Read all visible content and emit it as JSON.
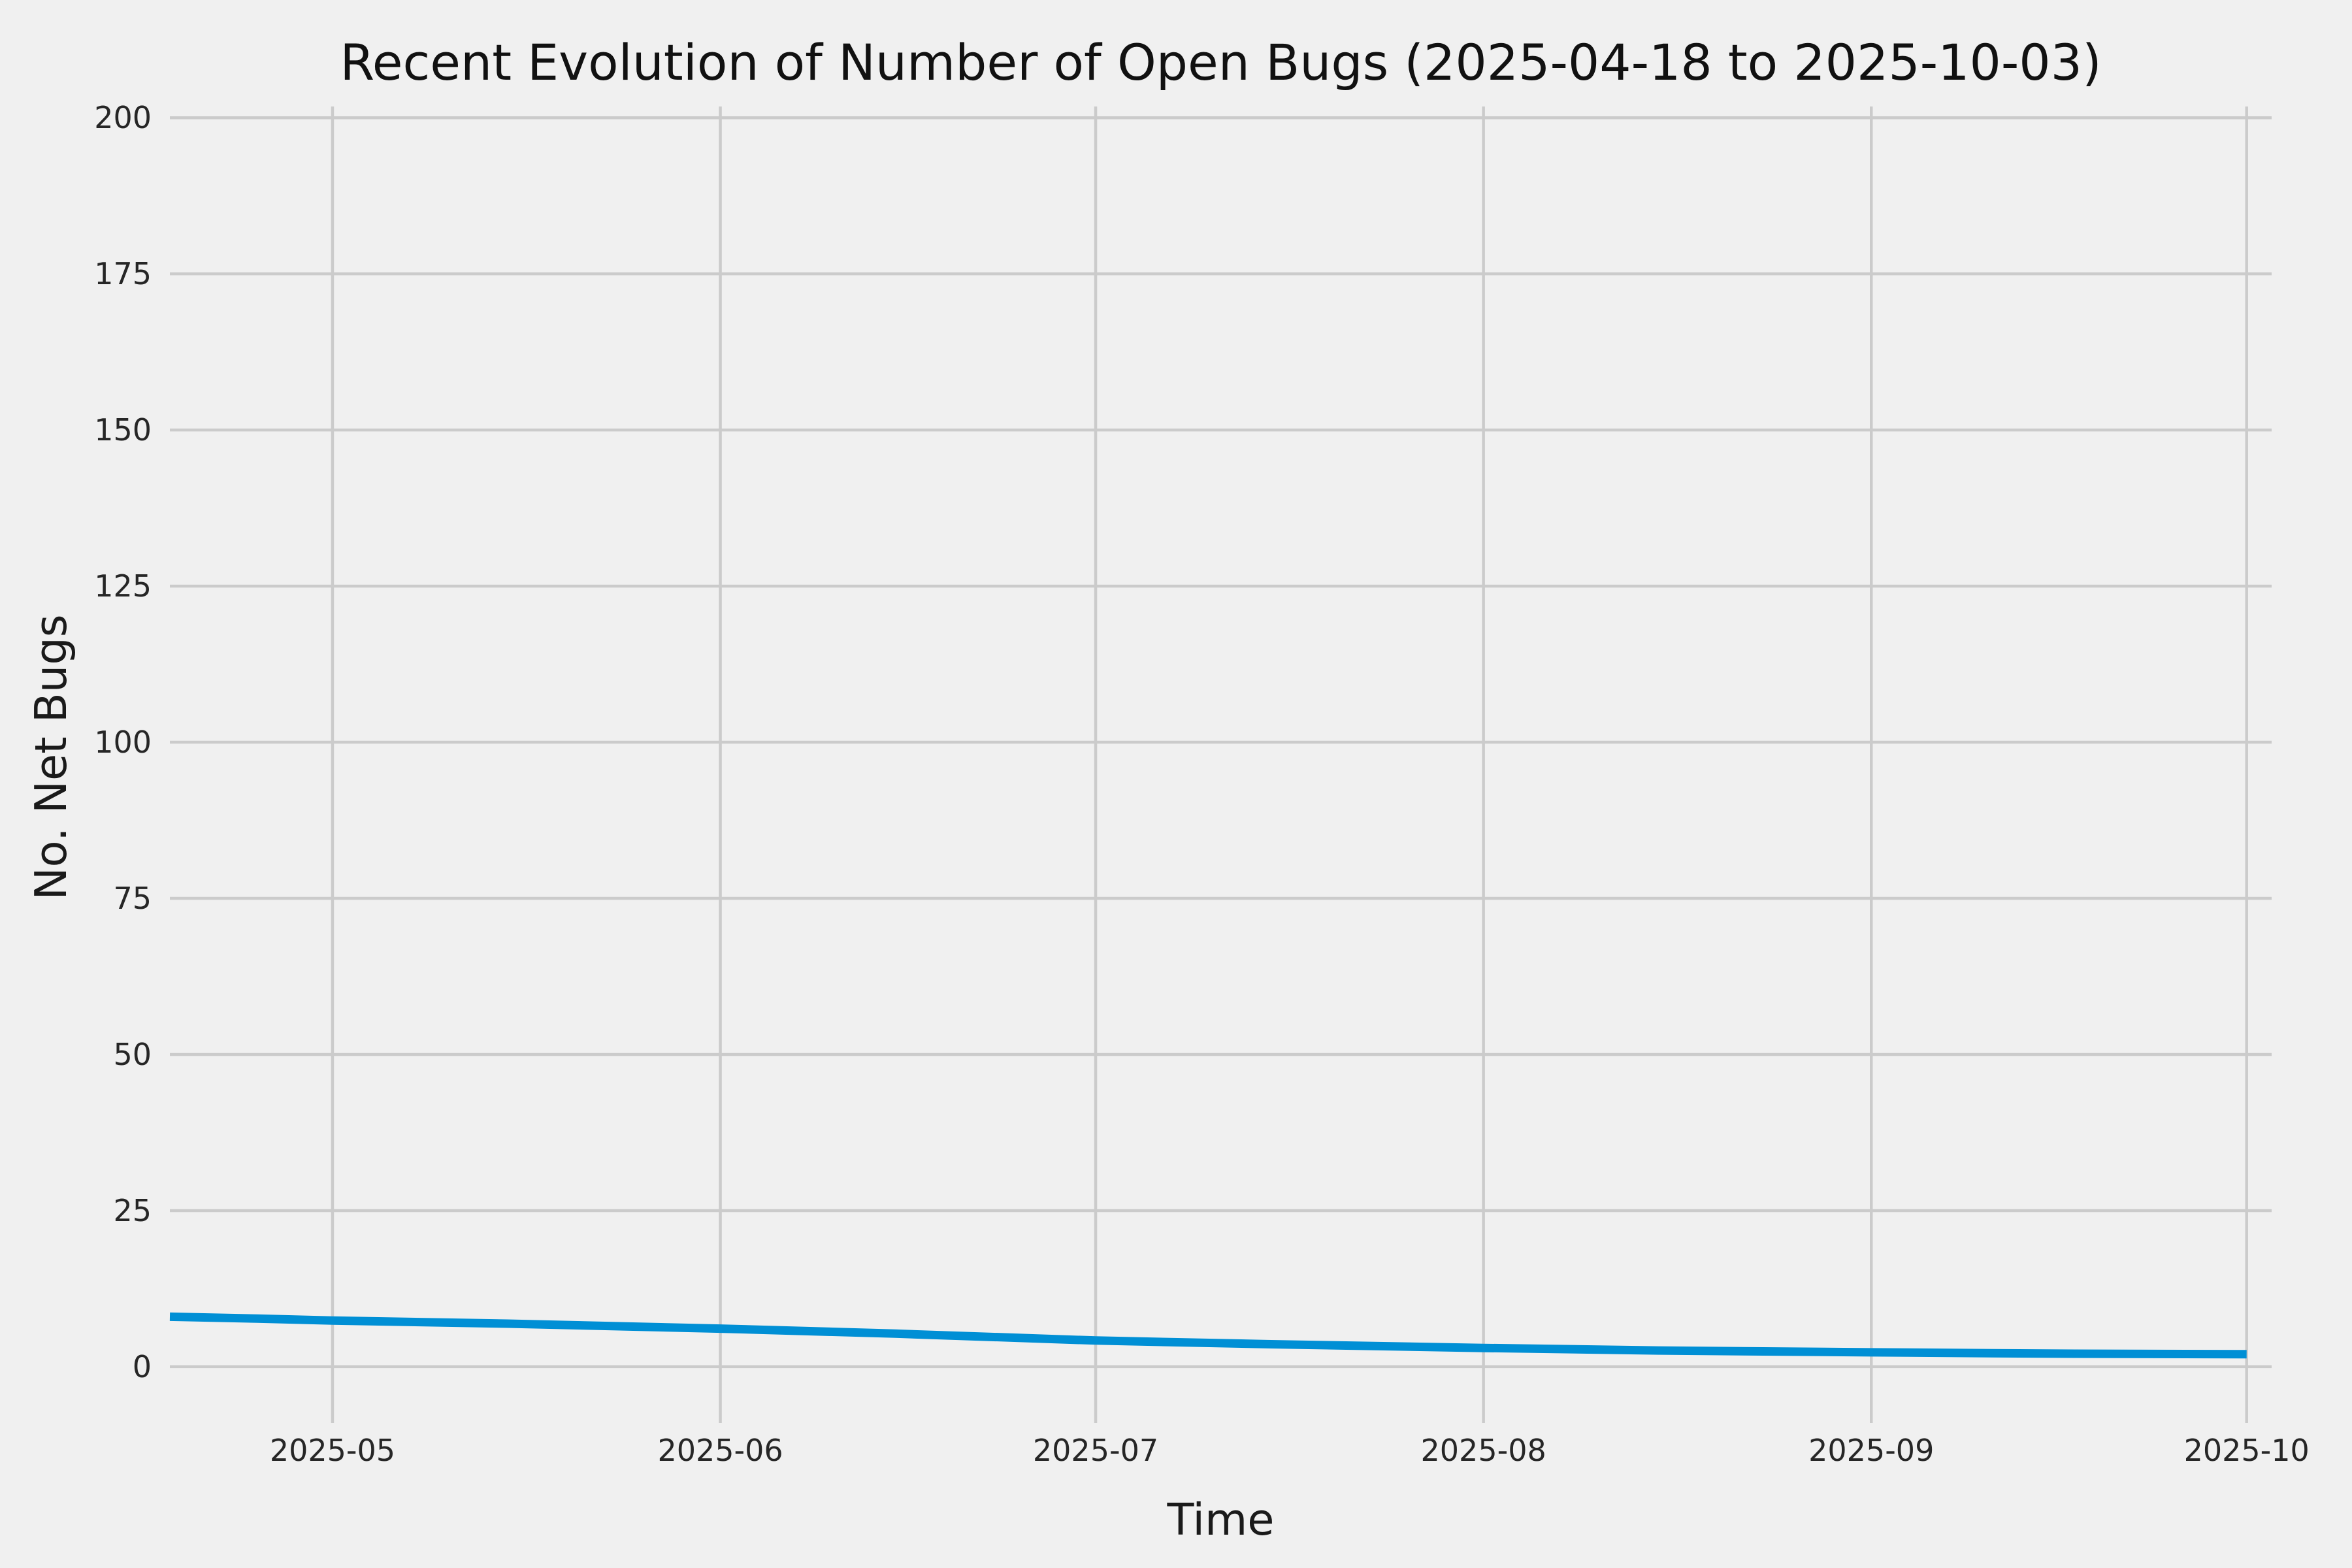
{
  "chart_data": {
    "type": "line",
    "title": "Recent Evolution of Number of Open Bugs (2025-04-18 to 2025-10-03)",
    "xlabel": "Time",
    "ylabel": "No. Net Bugs",
    "x_range_days": 168,
    "x_start_date": "2025-04-18",
    "x_end_date": "2025-10-03",
    "ylim": [
      -6.6,
      201.8
    ],
    "y_ticks": [
      0,
      25,
      50,
      75,
      100,
      125,
      150,
      175,
      200
    ],
    "x_ticks": [
      {
        "label": "2025-05",
        "day": 13
      },
      {
        "label": "2025-06",
        "day": 44
      },
      {
        "label": "2025-07",
        "day": 74
      },
      {
        "label": "2025-08",
        "day": 105
      },
      {
        "label": "2025-09",
        "day": 136
      },
      {
        "label": "2025-10",
        "day": 166
      }
    ],
    "grid": true,
    "legend": false,
    "colors": {
      "background": "#f0f0f0",
      "grid": "#cbcbcb",
      "line": "#008fd5",
      "text": "#262626",
      "title_text": "#111111"
    },
    "series": [
      {
        "name": "open-bugs",
        "color": "#008fd5",
        "line_width": 13,
        "points": [
          {
            "date": "2025-04-18",
            "day": 0,
            "value": 8.0
          },
          {
            "date": "2025-04-25",
            "day": 7,
            "value": 7.7
          },
          {
            "date": "2025-05-01",
            "day": 13,
            "value": 7.4
          },
          {
            "date": "2025-05-15",
            "day": 27,
            "value": 6.9
          },
          {
            "date": "2025-06-01",
            "day": 44,
            "value": 6.1
          },
          {
            "date": "2025-06-15",
            "day": 58,
            "value": 5.3
          },
          {
            "date": "2025-07-01",
            "day": 74,
            "value": 4.2
          },
          {
            "date": "2025-07-15",
            "day": 88,
            "value": 3.6
          },
          {
            "date": "2025-08-01",
            "day": 105,
            "value": 3.0
          },
          {
            "date": "2025-08-15",
            "day": 119,
            "value": 2.6
          },
          {
            "date": "2025-09-01",
            "day": 136,
            "value": 2.3
          },
          {
            "date": "2025-09-15",
            "day": 150,
            "value": 2.1
          },
          {
            "date": "2025-10-01",
            "day": 166,
            "value": 2.0
          }
        ]
      }
    ]
  }
}
